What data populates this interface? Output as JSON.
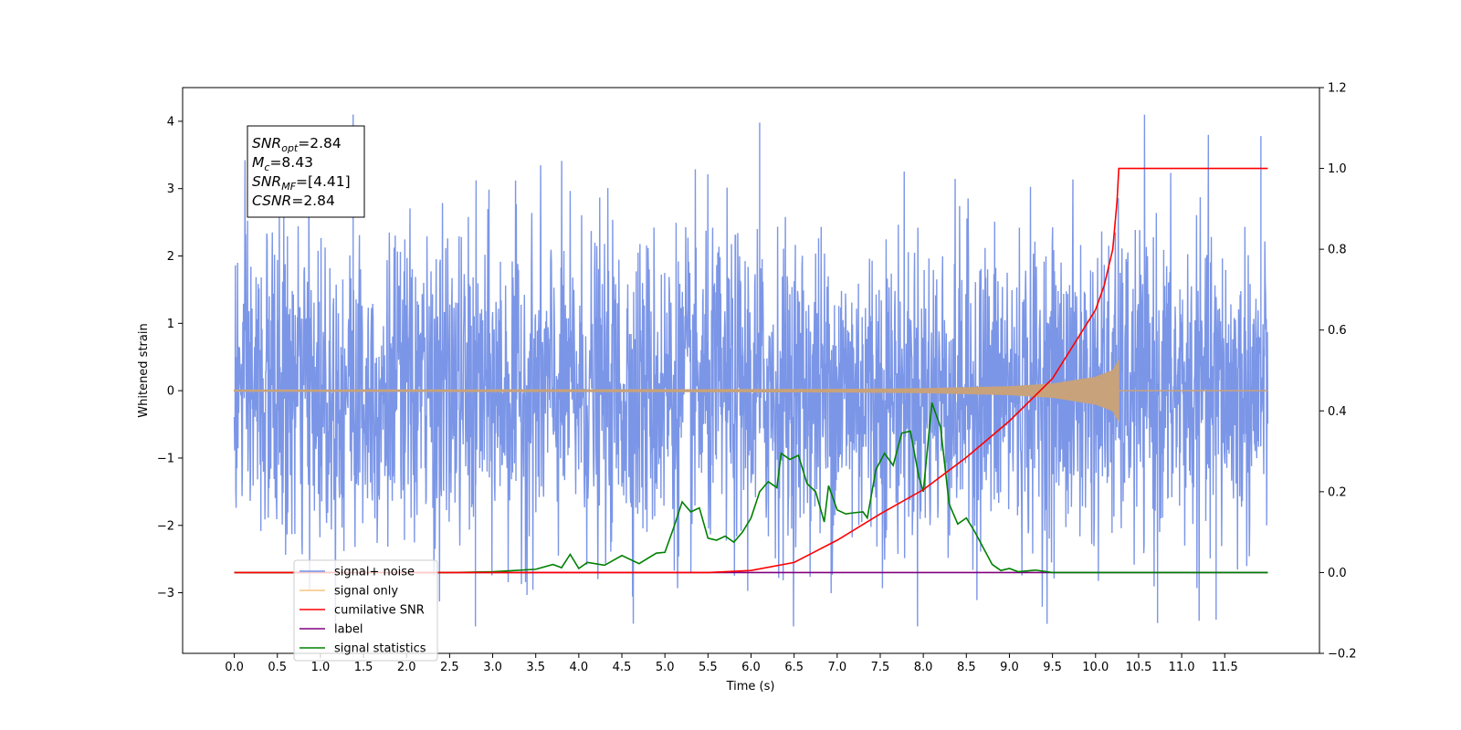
{
  "chart_data": {
    "type": "line",
    "xlabel": "Time (s)",
    "ylabel": "Whitened strain",
    "xlim": [
      -0.6,
      12.6
    ],
    "ylim": [
      -3.9,
      4.5
    ],
    "y2lim": [
      -0.2,
      1.2
    ],
    "x_ticks": [
      0.0,
      0.5,
      1.0,
      1.5,
      2.0,
      2.5,
      3.0,
      3.5,
      4.0,
      4.5,
      5.0,
      5.5,
      6.0,
      6.5,
      7.0,
      7.5,
      8.0,
      8.5,
      9.0,
      9.5,
      10.0,
      10.5,
      11.0,
      11.5
    ],
    "x_tick_labels": [
      "0.0",
      "0.5",
      "1.0",
      "1.5",
      "2.0",
      "2.5",
      "3.0",
      "3.5",
      "4.0",
      "4.5",
      "5.0",
      "5.5",
      "6.0",
      "6.5",
      "7.0",
      "7.5",
      "8.0",
      "8.5",
      "9.0",
      "9.5",
      "10.0",
      "10.5",
      "11.0",
      "11.5"
    ],
    "y_ticks": [
      -3,
      -2,
      -1,
      0,
      1,
      2,
      3,
      4
    ],
    "y_tick_labels": [
      "−3",
      "−2",
      "−1",
      "0",
      "1",
      "2",
      "3",
      "4"
    ],
    "y2_ticks": [
      -0.2,
      0.0,
      0.2,
      0.4,
      0.6,
      0.8,
      1.0,
      1.2
    ],
    "y2_tick_labels": [
      "−0.2",
      "0.0",
      "0.2",
      "0.4",
      "0.6",
      "0.8",
      "1.0",
      "1.2"
    ],
    "annotation": {
      "lines": [
        {
          "base": "SNR",
          "sub": "opt",
          "rest": "=2.84"
        },
        {
          "base": "M",
          "sub": "c",
          "rest": "=8.43"
        },
        {
          "base": "SNR",
          "sub": "MF",
          "rest": "=[4.41]"
        },
        {
          "base": "CSNR",
          "sub": "",
          "rest": "=2.84"
        }
      ]
    },
    "legend": {
      "position": "lower-left",
      "entries": [
        {
          "label": "signal+ noise",
          "color": "#7590e6"
        },
        {
          "label": "signal only",
          "color": "#f8c37a"
        },
        {
          "label": "cumilative SNR",
          "color": "#ff0000"
        },
        {
          "label": "label",
          "color": "#800080"
        },
        {
          "label": "signal statistics",
          "color": "#008000"
        }
      ]
    },
    "series": [
      {
        "name": "signal+ noise",
        "axis": "left",
        "color": "#7590e6",
        "x_range": [
          0.0,
          12.0
        ],
        "approx_range": [
          -3.5,
          4.1
        ],
        "peaks": [
          [
            1.38,
            4.1
          ],
          [
            6.1,
            3.98
          ],
          [
            11.92,
            3.78
          ],
          [
            2.8,
            -3.5
          ],
          [
            10.72,
            -3.45
          ],
          [
            11.4,
            -3.4
          ]
        ]
      },
      {
        "name": "signal only",
        "axis": "left",
        "color": "#f8c37a",
        "chirp_end": 10.27,
        "envelope": [
          [
            0.0,
            0.01
          ],
          [
            5.0,
            0.015
          ],
          [
            7.0,
            0.02
          ],
          [
            8.0,
            0.03
          ],
          [
            9.0,
            0.06
          ],
          [
            9.5,
            0.1
          ],
          [
            10.0,
            0.2
          ],
          [
            10.2,
            0.3
          ],
          [
            10.27,
            0.45
          ],
          [
            10.28,
            0.0
          ],
          [
            12.0,
            0.0
          ]
        ]
      },
      {
        "name": "cumilative SNR",
        "axis": "right",
        "color": "#ff0000",
        "points": [
          [
            0.0,
            0.0
          ],
          [
            5.5,
            0.0
          ],
          [
            6.0,
            0.005
          ],
          [
            6.5,
            0.025
          ],
          [
            7.0,
            0.08
          ],
          [
            7.5,
            0.145
          ],
          [
            8.0,
            0.205
          ],
          [
            8.5,
            0.285
          ],
          [
            9.0,
            0.375
          ],
          [
            9.5,
            0.48
          ],
          [
            10.0,
            0.65
          ],
          [
            10.1,
            0.71
          ],
          [
            10.2,
            0.8
          ],
          [
            10.25,
            0.92
          ],
          [
            10.27,
            1.0
          ],
          [
            12.0,
            1.0
          ]
        ]
      },
      {
        "name": "label",
        "axis": "right",
        "color": "#800080",
        "points": [
          [
            0.0,
            0.0
          ],
          [
            12.0,
            0.0
          ]
        ]
      },
      {
        "name": "signal statistics",
        "axis": "right",
        "color": "#008000",
        "points": [
          [
            0.0,
            0.0
          ],
          [
            2.5,
            0.0
          ],
          [
            3.0,
            0.002
          ],
          [
            3.5,
            0.008
          ],
          [
            3.7,
            0.02
          ],
          [
            3.8,
            0.012
          ],
          [
            3.9,
            0.045
          ],
          [
            4.0,
            0.01
          ],
          [
            4.1,
            0.025
          ],
          [
            4.3,
            0.018
          ],
          [
            4.5,
            0.042
          ],
          [
            4.7,
            0.022
          ],
          [
            4.9,
            0.048
          ],
          [
            5.0,
            0.05
          ],
          [
            5.1,
            0.11
          ],
          [
            5.2,
            0.175
          ],
          [
            5.3,
            0.15
          ],
          [
            5.4,
            0.16
          ],
          [
            5.5,
            0.085
          ],
          [
            5.6,
            0.08
          ],
          [
            5.7,
            0.09
          ],
          [
            5.8,
            0.075
          ],
          [
            5.9,
            0.1
          ],
          [
            6.0,
            0.135
          ],
          [
            6.1,
            0.2
          ],
          [
            6.2,
            0.225
          ],
          [
            6.3,
            0.21
          ],
          [
            6.35,
            0.295
          ],
          [
            6.45,
            0.28
          ],
          [
            6.55,
            0.29
          ],
          [
            6.65,
            0.22
          ],
          [
            6.75,
            0.2
          ],
          [
            6.85,
            0.125
          ],
          [
            6.9,
            0.215
          ],
          [
            7.0,
            0.155
          ],
          [
            7.1,
            0.145
          ],
          [
            7.2,
            0.148
          ],
          [
            7.3,
            0.15
          ],
          [
            7.35,
            0.135
          ],
          [
            7.45,
            0.255
          ],
          [
            7.55,
            0.295
          ],
          [
            7.65,
            0.265
          ],
          [
            7.75,
            0.345
          ],
          [
            7.85,
            0.35
          ],
          [
            7.95,
            0.235
          ],
          [
            8.0,
            0.2
          ],
          [
            8.1,
            0.42
          ],
          [
            8.2,
            0.36
          ],
          [
            8.3,
            0.17
          ],
          [
            8.4,
            0.12
          ],
          [
            8.5,
            0.135
          ],
          [
            8.6,
            0.1
          ],
          [
            8.7,
            0.06
          ],
          [
            8.8,
            0.02
          ],
          [
            8.9,
            0.005
          ],
          [
            9.0,
            0.01
          ],
          [
            9.1,
            0.002
          ],
          [
            9.3,
            0.006
          ],
          [
            9.5,
            0.0
          ],
          [
            12.0,
            0.0
          ]
        ]
      }
    ]
  }
}
